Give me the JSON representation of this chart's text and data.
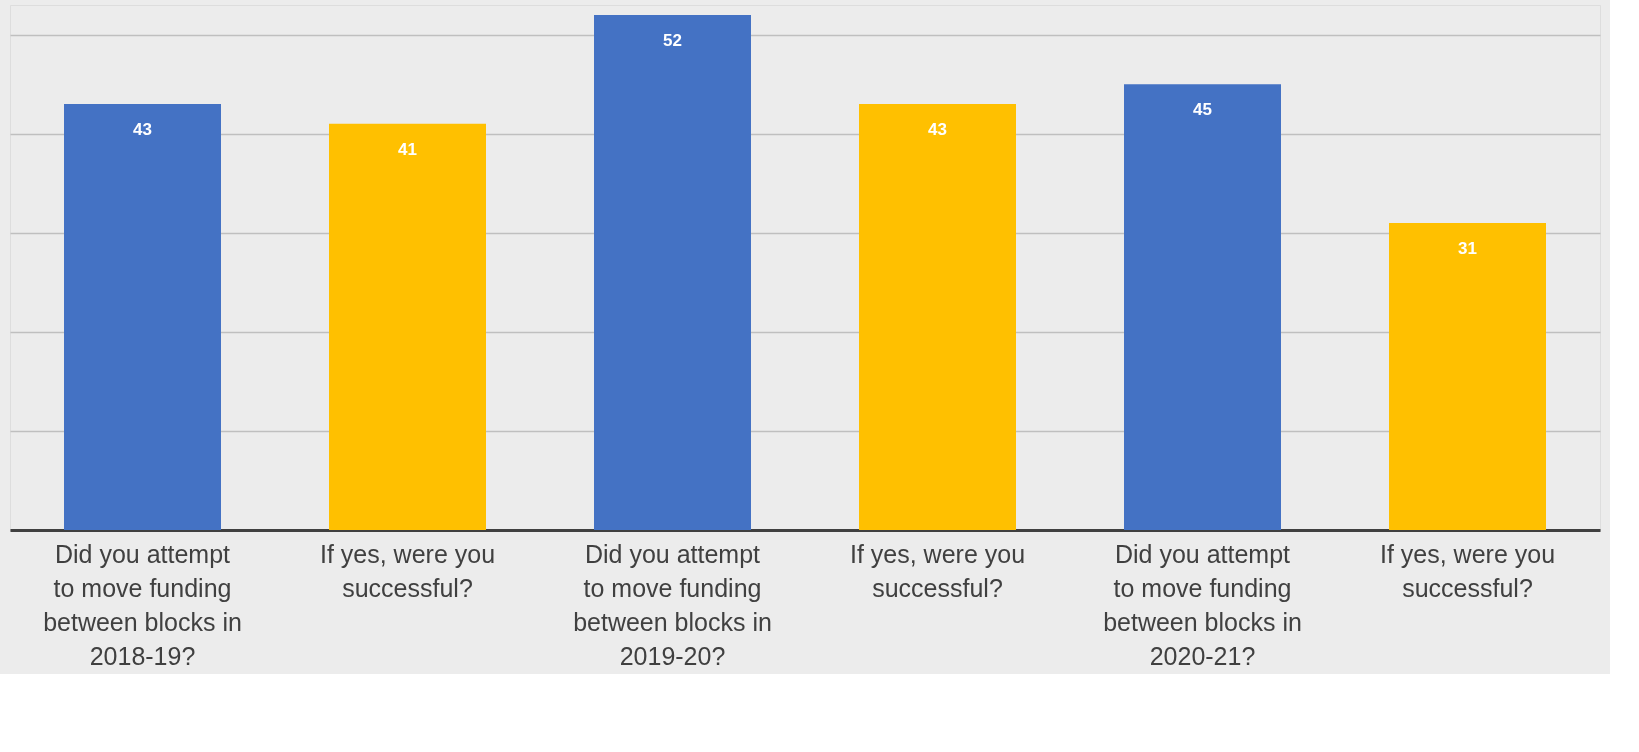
{
  "chart_data": {
    "type": "bar",
    "categories": [
      "Did you attempt to move funding between blocks in 2018-19?",
      "If yes, were you successful?",
      "Did you attempt to move funding between blocks in 2019-20?",
      "If yes, were you successful?",
      "Did you attempt to move funding between blocks in 2020-21?",
      "If yes, were you successful?"
    ],
    "values": [
      43,
      41,
      52,
      43,
      45,
      31
    ],
    "colors": [
      "#4472c4",
      "#ffc000",
      "#4472c4",
      "#ffc000",
      "#4472c4",
      "#ffc000"
    ],
    "ylim": [
      0,
      53
    ],
    "yticks": [
      {
        "value": 0,
        "label": null
      },
      {
        "value": 10,
        "label": null
      },
      {
        "value": 20,
        "label": null
      },
      {
        "value": 30,
        "label": null
      },
      {
        "value": 40,
        "label": null
      },
      {
        "value": 50,
        "label": null
      }
    ],
    "tick_labels": "x",
    "grid": "y",
    "data_labels": true
  }
}
